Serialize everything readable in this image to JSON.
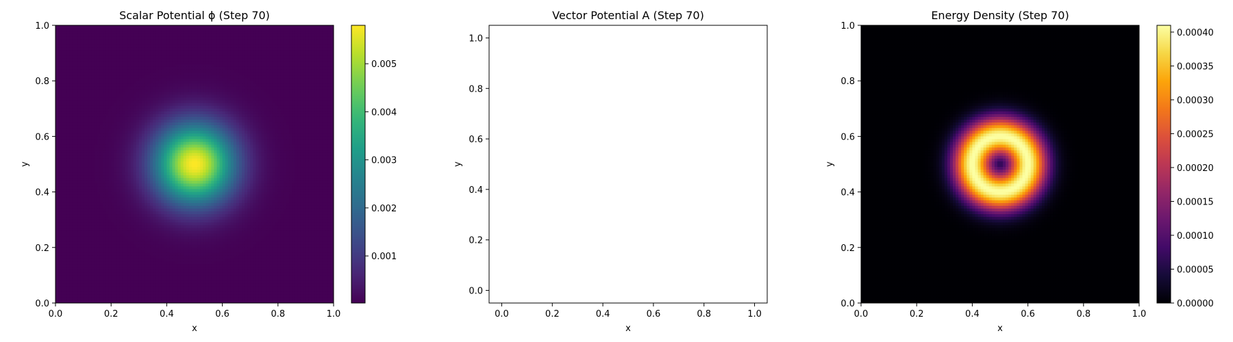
{
  "figure": {
    "panels": [
      {
        "title": "Scalar Potential ϕ (Step 70)",
        "xlabel": "x",
        "ylabel": "y"
      },
      {
        "title": "Vector Potential A (Step 70)",
        "xlabel": "x",
        "ylabel": "y"
      },
      {
        "title": "Energy Density (Step 70)",
        "xlabel": "x",
        "ylabel": "y"
      }
    ]
  },
  "chart_data": [
    {
      "type": "heatmap",
      "title": "Scalar Potential ϕ (Step 70)",
      "xlabel": "x",
      "ylabel": "y",
      "xlim": [
        0.0,
        1.0
      ],
      "ylim": [
        0.0,
        1.0
      ],
      "xticks": [
        "0.0",
        "0.2",
        "0.4",
        "0.6",
        "0.8",
        "1.0"
      ],
      "yticks": [
        "0.0",
        "0.2",
        "0.4",
        "0.6",
        "0.8",
        "1.0"
      ],
      "field": {
        "shape": "gaussian",
        "center": [
          0.5,
          0.5
        ],
        "sigma": 0.1,
        "peak": 0.0058,
        "min": 2e-05
      },
      "colormap": "viridis",
      "colorbar": {
        "min": 2e-05,
        "max": 0.0058,
        "ticks": [
          "0.001",
          "0.002",
          "0.003",
          "0.004",
          "0.005"
        ],
        "tick_values": [
          0.001,
          0.002,
          0.003,
          0.004,
          0.005
        ]
      }
    },
    {
      "type": "scatter",
      "title": "Vector Potential A (Step 70)",
      "xlabel": "x",
      "ylabel": "y",
      "xlim": [
        -0.05,
        1.05
      ],
      "ylim": [
        -0.05,
        1.05
      ],
      "xticks": [
        "0.0",
        "0.2",
        "0.4",
        "0.6",
        "0.8",
        "1.0"
      ],
      "yticks": [
        "0.0",
        "0.2",
        "0.4",
        "0.6",
        "0.8",
        "1.0"
      ],
      "series": []
    },
    {
      "type": "heatmap",
      "title": "Energy Density (Step 70)",
      "xlabel": "x",
      "ylabel": "y",
      "xlim": [
        0.0,
        1.0
      ],
      "ylim": [
        0.0,
        1.0
      ],
      "xticks": [
        "0.0",
        "0.2",
        "0.4",
        "0.6",
        "0.8",
        "1.0"
      ],
      "yticks": [
        "0.0",
        "0.2",
        "0.4",
        "0.6",
        "0.8",
        "1.0"
      ],
      "field": {
        "shape": "ring",
        "center": [
          0.5,
          0.5
        ],
        "radius": 0.1,
        "width": 0.07,
        "peak": 0.00041,
        "min": 0.0
      },
      "colormap": "inferno",
      "colorbar": {
        "min": 0.0,
        "max": 0.00041,
        "ticks": [
          "0.00000",
          "0.00005",
          "0.00010",
          "0.00015",
          "0.00020",
          "0.00025",
          "0.00030",
          "0.00035",
          "0.00040"
        ],
        "tick_values": [
          0.0,
          5e-05,
          0.0001,
          0.00015,
          0.0002,
          0.00025,
          0.0003,
          0.00035,
          0.0004
        ]
      }
    }
  ]
}
